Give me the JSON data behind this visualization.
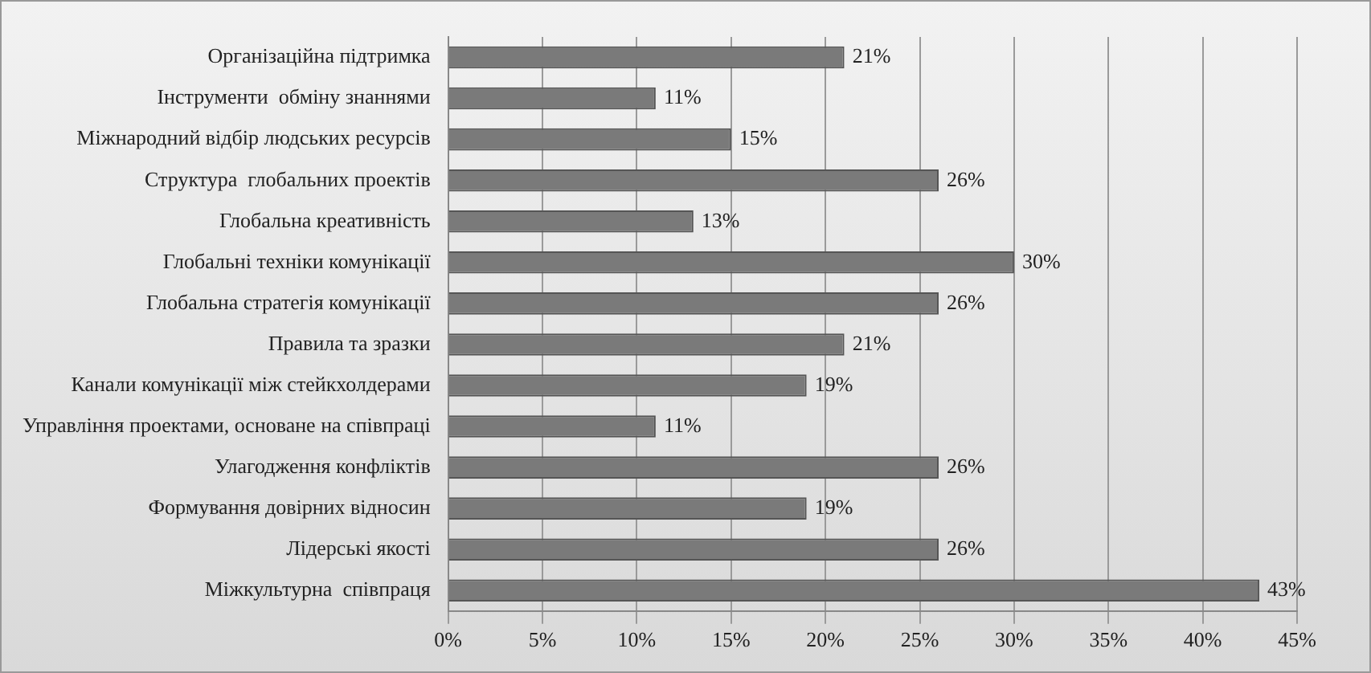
{
  "chart_data": {
    "type": "bar",
    "orientation": "horizontal",
    "categories": [
      "Організаційна підтримка",
      "Інструменти  обміну знаннями",
      "Міжнародний відбір людських ресурсів",
      "Структура  глобальних проектів",
      "Глобальна креативність",
      "Глобальні техніки комунікації",
      "Глобальна стратегія комунікації",
      "Правила та зразки",
      "Канали комунікації між стейкхолдерами",
      "Управління проектами, основане на співпраці",
      "Улагодження конфліктів",
      "Формування довірних відносин",
      "Лідерські якості",
      "Міжкультурна  співпраця"
    ],
    "values": [
      21,
      11,
      15,
      26,
      13,
      30,
      26,
      21,
      19,
      11,
      26,
      19,
      26,
      43
    ],
    "value_labels": [
      "21%",
      "11%",
      "15%",
      "26%",
      "13%",
      "30%",
      "26%",
      "21%",
      "19%",
      "11%",
      "26%",
      "19%",
      "26%",
      "43%"
    ],
    "color": "#7a7a7a",
    "xlim": [
      0,
      45
    ],
    "xticks": [
      {
        "value": 0,
        "label": "0%"
      },
      {
        "value": 5,
        "label": "5%"
      },
      {
        "value": 10,
        "label": "10%"
      },
      {
        "value": 15,
        "label": "15%"
      },
      {
        "value": 20,
        "label": "20%"
      },
      {
        "value": 25,
        "label": "25%"
      },
      {
        "value": 30,
        "label": "30%"
      },
      {
        "value": 35,
        "label": "35%"
      },
      {
        "value": 40,
        "label": "40%"
      },
      {
        "value": 45,
        "label": "45%"
      }
    ],
    "grid": "x",
    "legend": false
  }
}
